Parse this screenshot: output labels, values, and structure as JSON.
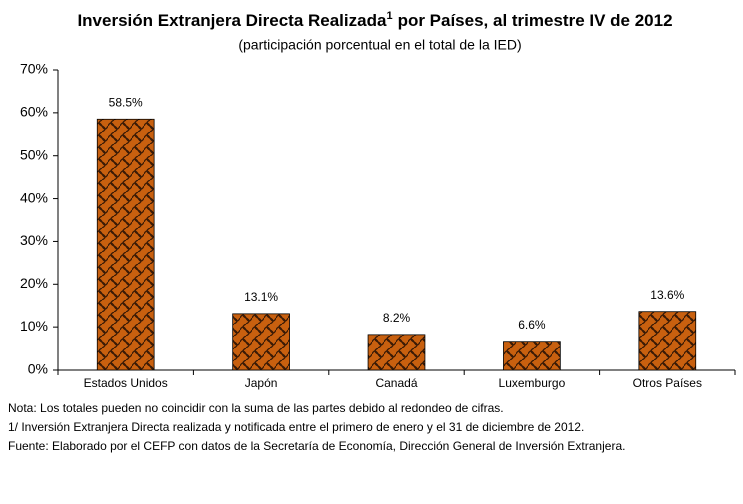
{
  "chart_data": {
    "type": "bar",
    "title": [
      "Inversión Extranjera Directa Realizada",
      "1",
      "por Países, al trimestre IV de 2012"
    ],
    "subtitle": "(participación porcentual en el total de la IED)",
    "categories": [
      "Estados Unidos",
      "Japón",
      "Canadá",
      "Luxemburgo",
      "Otros Países"
    ],
    "values": [
      58.5,
      13.1,
      8.2,
      6.6,
      13.6
    ],
    "value_labels": [
      "58.5%",
      "13.1%",
      "8.2%",
      "6.6%",
      "13.6%"
    ],
    "color": "#c8600f",
    "ylim": [
      0,
      70
    ],
    "yticks": [
      {
        "value": 0,
        "label": "0%"
      },
      {
        "value": 10,
        "label": "10%"
      },
      {
        "value": 20,
        "label": "20%"
      },
      {
        "value": 30,
        "label": "30%"
      },
      {
        "value": 40,
        "label": "40%"
      },
      {
        "value": 50,
        "label": "50%"
      },
      {
        "value": 60,
        "label": "60%"
      },
      {
        "value": 70,
        "label": "70%"
      }
    ],
    "grid": false
  },
  "notes": [
    "Nota: Los totales pueden no coincidir con la suma de las partes debido al redondeo de cifras.",
    "1/ Inversión Extranjera Directa realizada y notificada entre el primero de enero y el 31 de diciembre de 2012.",
    "Fuente: Elaborado por el CEFP con datos de la Secretaría de Economía, Dirección General de Inversión Extranjera."
  ]
}
